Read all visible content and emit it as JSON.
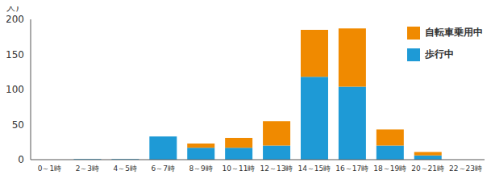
{
  "chart_data": {
    "type": "bar",
    "stacked": true,
    "y_label": "(人)",
    "categories": [
      "0～1時",
      "2～3時",
      "4～5時",
      "6～7時",
      "8～9時",
      "10～11時",
      "12～13時",
      "14～15時",
      "16～17時",
      "18～19時",
      "20～21時",
      "22～23時"
    ],
    "series": [
      {
        "name": "歩行中",
        "color": "#1e9ad6",
        "values": [
          0,
          1,
          1,
          33,
          17,
          17,
          20,
          118,
          104,
          20,
          6,
          0
        ]
      },
      {
        "name": "自転車乗用中",
        "color": "#f08a00",
        "values": [
          0,
          0,
          0,
          0,
          6,
          14,
          35,
          67,
          83,
          23,
          5,
          0
        ]
      }
    ],
    "ylim": [
      0,
      200
    ],
    "yticks": [
      0,
      50,
      100,
      150,
      200
    ],
    "grid": false,
    "legend": "upper right"
  }
}
